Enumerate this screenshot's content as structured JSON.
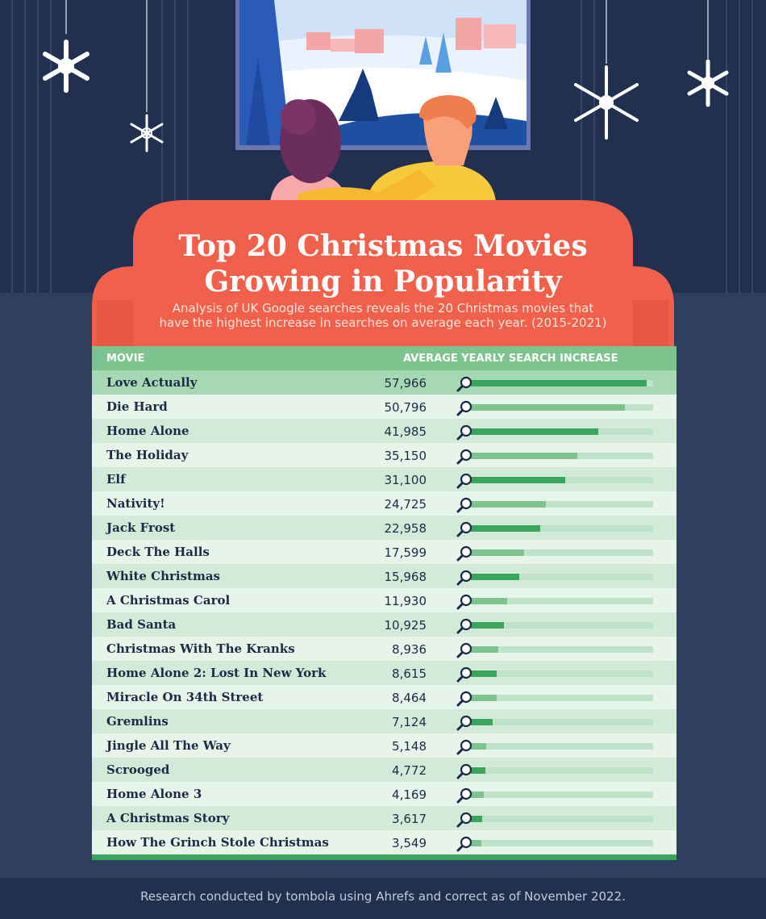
{
  "title_line1": "Top 20 Christmas Movies",
  "title_line2": "Growing in Popularity",
  "subtitle_line1": "Analysis of UK Google searches reveals the 20 Christmas movies that",
  "subtitle_line2": "have the highest increase in searches on average each year. (2015-2021)",
  "footer": "Research conducted by tombola using Ahrefs and correct as of November 2022.",
  "colors": {
    "background": "#2f3f5f",
    "sofa": "#f0604b",
    "header_green": "#7cc38e",
    "bar_dark": "#3aa55c",
    "bar_light": "#7cc38e",
    "track": "#bfe3c9"
  },
  "icons": [
    "snowflake-icon",
    "magnifier-icon"
  ],
  "chart_data": {
    "type": "bar",
    "orientation": "horizontal",
    "columns": [
      "MOVIE",
      "AVERAGE YEARLY SEARCH INCREASE"
    ],
    "xlim": [
      0,
      60000
    ],
    "categories": [
      "Love Actually",
      "Die Hard",
      "Home Alone",
      "The Holiday",
      "Elf",
      "Nativity!",
      "Jack Frost",
      "Deck The Halls",
      "White Christmas",
      "A Christmas Carol",
      "Bad Santa",
      "Christmas With The Kranks",
      "Home Alone 2: Lost In New York",
      "Miracle On 34th Street",
      "Gremlins",
      "Jingle All The Way",
      "Scrooged",
      "Home Alone 3",
      "A Christmas Story",
      "How The Grinch Stole Christmas"
    ],
    "values": [
      57966,
      50796,
      41985,
      35150,
      31100,
      24725,
      22958,
      17599,
      15968,
      11930,
      10925,
      8936,
      8615,
      8464,
      7124,
      5148,
      4772,
      4169,
      3617,
      3549
    ],
    "value_labels": [
      "57,966",
      "50,796",
      "41,985",
      "35,150",
      "31,100",
      "24,725",
      "22,958",
      "17,599",
      "15,968",
      "11,930",
      "10,925",
      "8,936",
      "8,615",
      "8,464",
      "7,124",
      "5,148",
      "4,772",
      "4,169",
      "3,617",
      "3,549"
    ]
  }
}
